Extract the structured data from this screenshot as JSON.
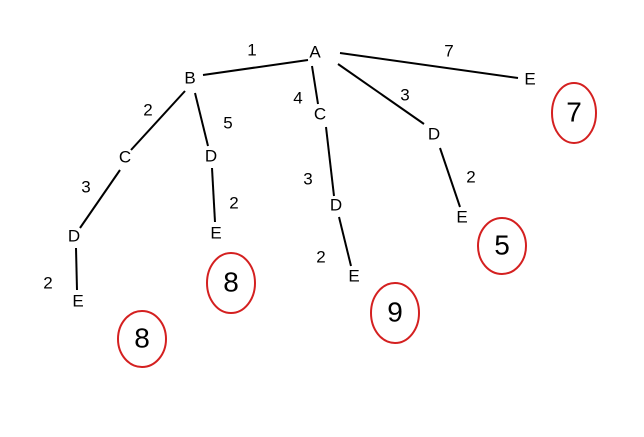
{
  "tree": {
    "nodes": [
      {
        "id": "A",
        "label": "A"
      },
      {
        "id": "B",
        "label": "B"
      },
      {
        "id": "C1",
        "label": "C"
      },
      {
        "id": "D1",
        "label": "D"
      },
      {
        "id": "E1",
        "label": "E"
      },
      {
        "id": "D2",
        "label": "D"
      },
      {
        "id": "E2",
        "label": "E"
      },
      {
        "id": "C2",
        "label": "C"
      },
      {
        "id": "D3",
        "label": "D"
      },
      {
        "id": "E3",
        "label": "E"
      },
      {
        "id": "D4",
        "label": "D"
      },
      {
        "id": "E4",
        "label": "E"
      },
      {
        "id": "E5",
        "label": "E"
      }
    ],
    "edges": [
      {
        "from": "A",
        "to": "B",
        "weight": "1"
      },
      {
        "from": "B",
        "to": "C1",
        "weight": "2"
      },
      {
        "from": "C1",
        "to": "D1",
        "weight": "3"
      },
      {
        "from": "D1",
        "to": "E1",
        "weight": "2"
      },
      {
        "from": "B",
        "to": "D2",
        "weight": "5"
      },
      {
        "from": "D2",
        "to": "E2",
        "weight": "2"
      },
      {
        "from": "A",
        "to": "C2",
        "weight": "4"
      },
      {
        "from": "C2",
        "to": "D3",
        "weight": "3"
      },
      {
        "from": "D3",
        "to": "E3",
        "weight": "2"
      },
      {
        "from": "A",
        "to": "D4",
        "weight": "3"
      },
      {
        "from": "D4",
        "to": "E4",
        "weight": "2"
      },
      {
        "from": "A",
        "to": "E5",
        "weight": "7"
      }
    ],
    "path_costs": [
      {
        "leaf": "E1",
        "value": "8"
      },
      {
        "leaf": "E2",
        "value": "8"
      },
      {
        "leaf": "E3",
        "value": "9"
      },
      {
        "leaf": "E4",
        "value": "5"
      },
      {
        "leaf": "E5",
        "value": "7"
      }
    ]
  },
  "colors": {
    "edge": "#000000",
    "text": "#000000",
    "ring": "#d42020",
    "background": "#ffffff"
  }
}
